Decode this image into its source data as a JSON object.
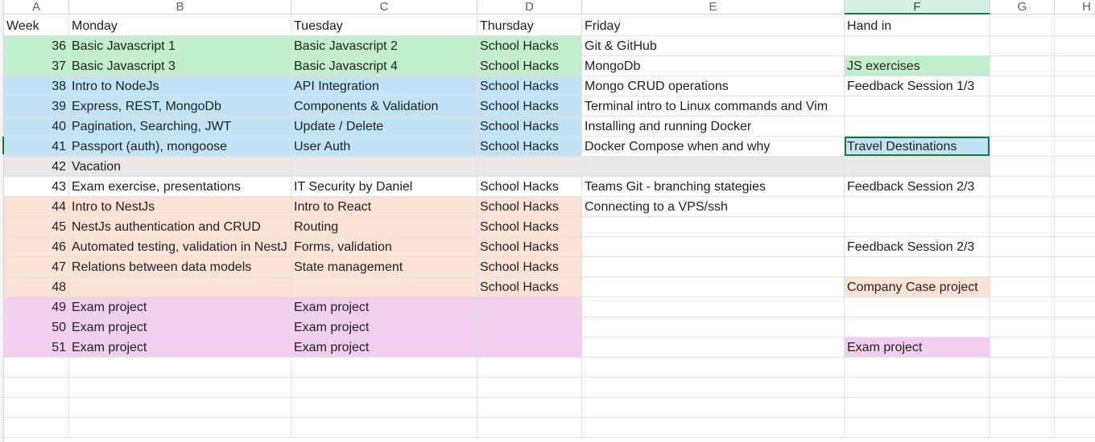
{
  "columns": [
    {
      "letter": "A"
    },
    {
      "letter": "B"
    },
    {
      "letter": "C"
    },
    {
      "letter": "D"
    },
    {
      "letter": "E"
    },
    {
      "letter": "F",
      "selected": true
    },
    {
      "letter": "G"
    },
    {
      "letter": "H"
    }
  ],
  "fills": {
    "green": "#c2efcb",
    "blue": "#c0e3f5",
    "gray": "#e8e8e8",
    "peach": "#fbe2d5",
    "pink": "#f2cfee",
    "white": "#ffffff"
  },
  "active_cell": "F7",
  "header_row": {
    "week": "Week",
    "monday": "Monday",
    "tuesday": "Tuesday",
    "thursday": "Thursday",
    "friday": "Friday",
    "hand_in": "Hand in"
  },
  "rows": [
    {
      "week": "36",
      "monday": "Basic Javascript 1",
      "tuesday": "Basic Javascript 2",
      "thursday": "School Hacks",
      "friday": "Git & GitHub",
      "hand_in": "",
      "fill": "green",
      "hand_in_fill": "white"
    },
    {
      "week": "37",
      "monday": "Basic Javascript 3",
      "tuesday": "Basic Javascript 4",
      "thursday": "School Hacks",
      "friday": "MongoDb",
      "hand_in": "JS exercises",
      "fill": "green",
      "hand_in_fill": "green"
    },
    {
      "week": "38",
      "monday": "Intro to NodeJs",
      "tuesday": "API Integration",
      "thursday": "School Hacks",
      "friday": "Mongo CRUD operations",
      "hand_in": "Feedback Session 1/3",
      "fill": "blue",
      "hand_in_fill": "white"
    },
    {
      "week": "39",
      "monday": "Express, REST, MongoDb",
      "tuesday": "Components & Validation",
      "thursday": "School Hacks",
      "friday": "Terminal intro to Linux commands and Vim",
      "hand_in": "",
      "fill": "blue",
      "hand_in_fill": "white"
    },
    {
      "week": "40",
      "monday": "Pagination, Searching, JWT",
      "tuesday": "Update / Delete",
      "thursday": "School Hacks",
      "friday": "Installing and running Docker",
      "hand_in": "",
      "fill": "blue",
      "hand_in_fill": "white"
    },
    {
      "week": "41",
      "monday": "Passport (auth), mongoose",
      "tuesday": "User Auth",
      "thursday": "School Hacks",
      "friday": "Docker Compose when and why",
      "hand_in": "Travel Destinations",
      "fill": "blue",
      "hand_in_fill": "blue"
    },
    {
      "week": "42",
      "monday": "Vacation",
      "tuesday": "",
      "thursday": "",
      "friday": "",
      "hand_in": "",
      "fill": "gray",
      "hand_in_fill": "gray"
    },
    {
      "week": "43",
      "monday": "Exam exercise, presentations",
      "tuesday": "IT Security by Daniel",
      "thursday": "School Hacks",
      "friday": "Teams Git - branching stategies",
      "hand_in": "Feedback Session 2/3",
      "fill": "white",
      "hand_in_fill": "white"
    },
    {
      "week": "44",
      "monday": "Intro to NestJs",
      "tuesday": "Intro to React",
      "thursday": "School Hacks",
      "friday": "Connecting to a VPS/ssh",
      "hand_in": "",
      "fill": "peach",
      "hand_in_fill": "white"
    },
    {
      "week": "45",
      "monday": "NestJs authentication and CRUD",
      "tuesday": "Routing",
      "thursday": "School Hacks",
      "friday": "",
      "hand_in": "",
      "fill": "peach",
      "hand_in_fill": "white"
    },
    {
      "week": "46",
      "monday": "Automated testing, validation in NestJ",
      "tuesday": "Forms, validation",
      "thursday": "School Hacks",
      "friday": "",
      "hand_in": "Feedback Session 2/3",
      "fill": "peach",
      "hand_in_fill": "white"
    },
    {
      "week": "47",
      "monday": "Relations between data models",
      "tuesday": "State management",
      "thursday": "School Hacks",
      "friday": "",
      "hand_in": "",
      "fill": "peach",
      "hand_in_fill": "white"
    },
    {
      "week": "48",
      "monday": "",
      "tuesday": "",
      "thursday": "School Hacks",
      "friday": "",
      "hand_in": "Company Case project",
      "fill": "peach",
      "hand_in_fill": "peach"
    },
    {
      "week": "49",
      "monday": "Exam project",
      "tuesday": "Exam project",
      "thursday": "",
      "friday": "",
      "hand_in": "",
      "fill": "pink",
      "hand_in_fill": "white"
    },
    {
      "week": "50",
      "monday": "Exam project",
      "tuesday": "Exam project",
      "thursday": "",
      "friday": "",
      "hand_in": "",
      "fill": "pink",
      "hand_in_fill": "white"
    },
    {
      "week": "51",
      "monday": "Exam project",
      "tuesday": "Exam project",
      "thursday": "",
      "friday": "",
      "hand_in": "Exam project",
      "fill": "pink",
      "hand_in_fill": "pink"
    }
  ]
}
